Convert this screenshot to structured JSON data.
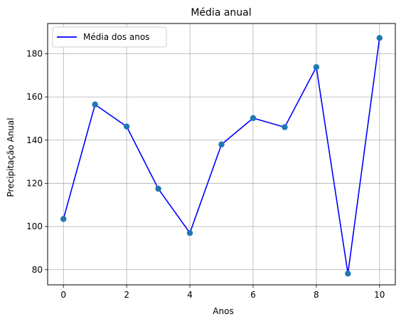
{
  "chart_data": {
    "type": "line",
    "title": "Média anual",
    "xlabel": "Anos",
    "ylabel": "Precipitação Anual",
    "x": [
      0,
      1,
      2,
      3,
      4,
      5,
      6,
      7,
      8,
      9,
      10
    ],
    "series": [
      {
        "name": "Média dos anos",
        "values": [
          103.5,
          156.5,
          146.3,
          117.5,
          97.0,
          138.0,
          150.2,
          146.0,
          173.8,
          78.2,
          187.3
        ],
        "color": "#0000ff",
        "marker_color": "#1f77b4"
      }
    ],
    "xlim": [
      -0.5,
      10.5
    ],
    "ylim": [
      73,
      194
    ],
    "xticks": [
      0,
      2,
      4,
      6,
      8,
      10
    ],
    "yticks": [
      80,
      100,
      120,
      140,
      160,
      180
    ],
    "grid": true,
    "legend_position": "top-left"
  }
}
